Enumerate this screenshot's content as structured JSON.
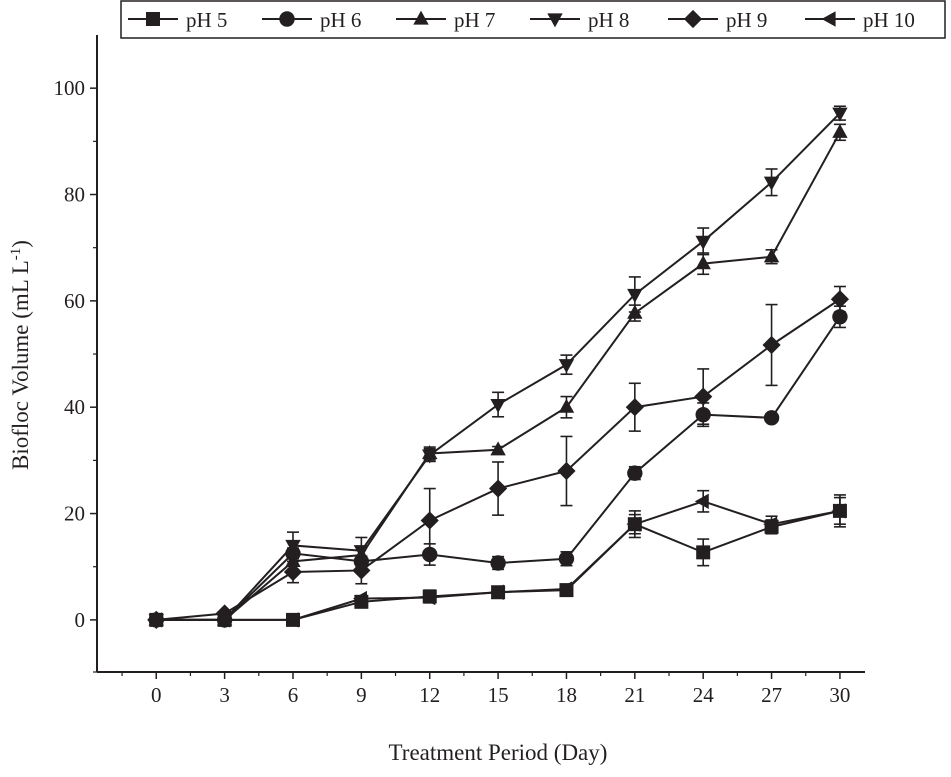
{
  "chart_data": {
    "type": "line",
    "title": "",
    "xlabel": "Treatment Period (Day)",
    "ylabel": "Biofloc Volume (mL L",
    "ylabel_sup": "-1",
    "ylabel_close": ")",
    "x": [
      0,
      3,
      6,
      9,
      12,
      15,
      18,
      21,
      24,
      27,
      30
    ],
    "xticks": [
      "0",
      "3",
      "6",
      "9",
      "12",
      "15",
      "18",
      "21",
      "24",
      "27",
      "30"
    ],
    "yticks": [
      "0",
      "20",
      "40",
      "60",
      "80",
      "100"
    ],
    "xlim": [
      -2.6,
      31.1
    ],
    "ylim": [
      -9.8,
      110
    ],
    "grid": false,
    "legend": "top",
    "series": [
      {
        "name": "pH 5",
        "marker": "square",
        "values": [
          0,
          0,
          0,
          3.4,
          4.4,
          5.2,
          5.6,
          18,
          12.7,
          17.5,
          20.5
        ],
        "errors": [
          0,
          0,
          0,
          0.5,
          1.2,
          1,
          0.6,
          1.8,
          2.5,
          1.3,
          2.5
        ]
      },
      {
        "name": "pH 6",
        "marker": "circle",
        "values": [
          0,
          0,
          12.5,
          11,
          12.3,
          10.7,
          11.5,
          27.6,
          38.6,
          38,
          57
        ],
        "errors": [
          0,
          0,
          1,
          1,
          2,
          1.2,
          1.3,
          1.2,
          2.2,
          0.5,
          2
        ]
      },
      {
        "name": "pH 7",
        "marker": "triangle-up",
        "values": [
          0,
          0,
          11,
          12.2,
          31.3,
          32,
          40,
          57.7,
          67,
          68.3,
          91.7
        ],
        "errors": [
          0,
          0,
          1.5,
          1.5,
          1.2,
          0.6,
          2,
          1.5,
          2,
          1.3,
          1.5
        ]
      },
      {
        "name": "pH 8",
        "marker": "triangle-down",
        "values": [
          0,
          0,
          14,
          13,
          31,
          40.5,
          48,
          61.2,
          71.2,
          82.3,
          95.3
        ],
        "errors": [
          0,
          0,
          2.5,
          2.5,
          1.2,
          2.3,
          1.8,
          3.3,
          2.5,
          2.5,
          1.3
        ]
      },
      {
        "name": "pH 9",
        "marker": "diamond",
        "values": [
          0,
          1.2,
          9,
          9.3,
          18.7,
          24.7,
          28,
          40,
          42,
          51.7,
          60.3
        ],
        "errors": [
          0,
          0,
          2,
          2.5,
          6,
          5,
          6.5,
          4.5,
          5.2,
          7.6,
          2.4
        ]
      },
      {
        "name": "pH 10",
        "marker": "triangle-left",
        "values": [
          0,
          0,
          0,
          4,
          4.2,
          5.2,
          5.8,
          18,
          22.3,
          18,
          20.5
        ],
        "errors": [
          0,
          0,
          0,
          0.5,
          0.8,
          1,
          0.6,
          2.5,
          2,
          1.5,
          3
        ]
      }
    ]
  }
}
